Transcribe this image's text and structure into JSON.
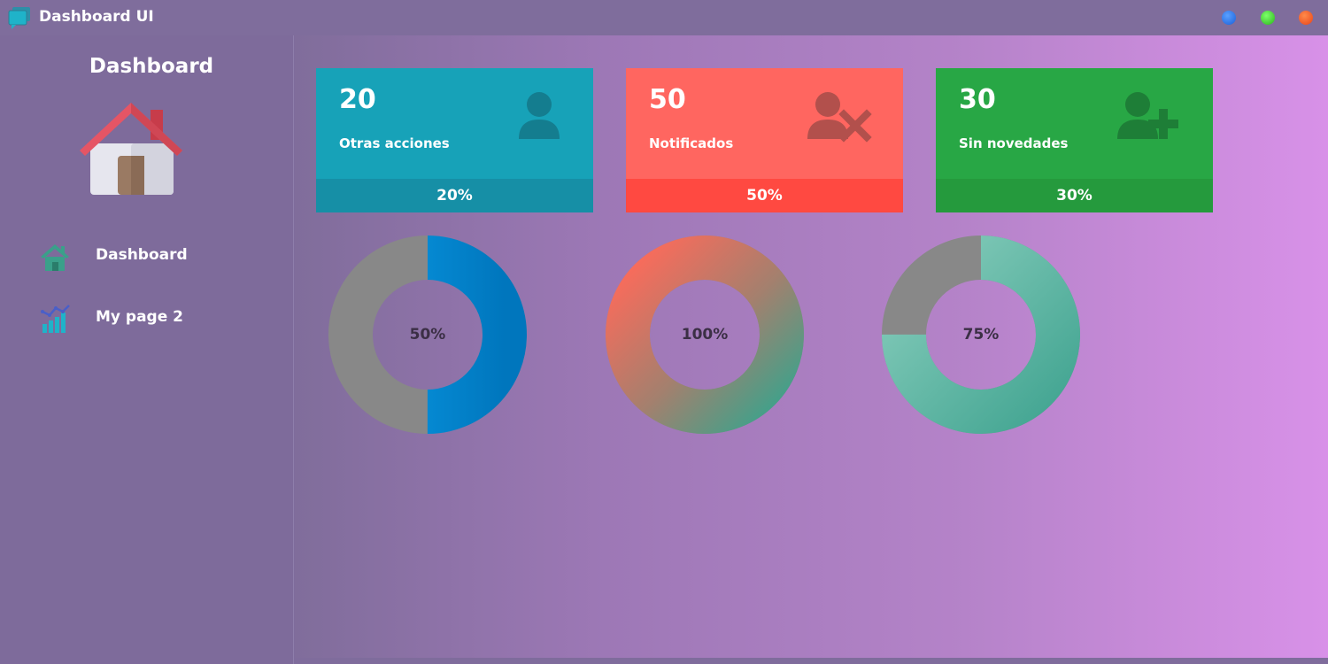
{
  "window": {
    "title": "Dashboard UI",
    "controls": [
      "minimize-button",
      "maximize-button",
      "close-button"
    ]
  },
  "sidebar": {
    "title": "Dashboard",
    "items": [
      {
        "label": "Dashboard",
        "icon": "home-icon"
      },
      {
        "label": "My page 2",
        "icon": "chart-icon"
      }
    ]
  },
  "cards": [
    {
      "count": "20",
      "label": "Otras acciones",
      "percent": "20%",
      "icon": "user-icon",
      "color": "#17a2b8"
    },
    {
      "count": "50",
      "label": "Notificados",
      "percent": "50%",
      "icon": "user-remove-icon",
      "color": "#ff6660"
    },
    {
      "count": "30",
      "label": "Sin novedades",
      "percent": "30%",
      "icon": "user-add-icon",
      "color": "#28a745"
    }
  ],
  "donuts": [
    {
      "label": "50%",
      "value": 0.5,
      "colors": [
        "#0a9be6",
        "#0078c0"
      ],
      "track": "#888888"
    },
    {
      "label": "100%",
      "value": 1.0,
      "colors": [
        "#ff6a5a",
        "#3aa38c"
      ],
      "track": "#888888"
    },
    {
      "label": "75%",
      "value": 0.75,
      "colors": [
        "#82cbb9",
        "#45a795"
      ],
      "track": "#888888"
    }
  ]
}
